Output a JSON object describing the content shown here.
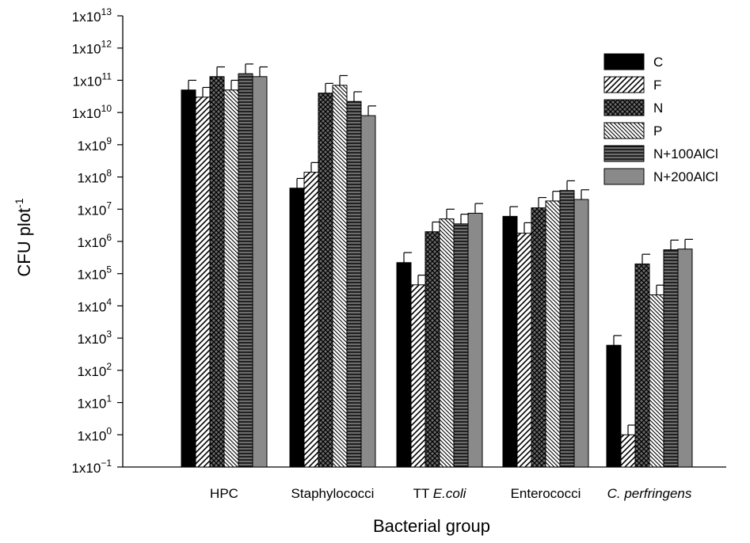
{
  "chart_data": {
    "type": "bar",
    "scale": "log",
    "title": "",
    "xlabel": "Bacterial group",
    "ylabel": "CFU plot",
    "ylabel_sup": "-1",
    "y_ticks": [
      {
        "exp": -1,
        "base": "1x10",
        "sup": "−1"
      },
      {
        "exp": 0,
        "base": "1x10",
        "sup": "0"
      },
      {
        "exp": 1,
        "base": "1x10",
        "sup": "1"
      },
      {
        "exp": 2,
        "base": "1x10",
        "sup": "2"
      },
      {
        "exp": 3,
        "base": "1x10",
        "sup": "3"
      },
      {
        "exp": 4,
        "base": "1x10",
        "sup": "4"
      },
      {
        "exp": 5,
        "base": "1x10",
        "sup": "5"
      },
      {
        "exp": 6,
        "base": "1x10",
        "sup": "6"
      },
      {
        "exp": 7,
        "base": "1x10",
        "sup": "7"
      },
      {
        "exp": 8,
        "base": "1x10",
        "sup": "8"
      },
      {
        "exp": 9,
        "base": "1x10",
        "sup": "9"
      },
      {
        "exp": 10,
        "base": "1x10",
        "sup": "10"
      },
      {
        "exp": 11,
        "base": "1x10",
        "sup": "11"
      },
      {
        "exp": 12,
        "base": "1x10",
        "sup": "12"
      },
      {
        "exp": 13,
        "base": "1x10",
        "sup": "13"
      }
    ],
    "ylim": [
      0.1,
      10000000000000.0
    ],
    "categories": [
      {
        "label": "HPC",
        "italic_part": ""
      },
      {
        "label": "Staphylococci",
        "italic_part": ""
      },
      {
        "label": "TT ",
        "italic_part": "E.coli"
      },
      {
        "label": "Enterococci",
        "italic_part": ""
      },
      {
        "label": "",
        "italic_part": "C. perfringens"
      }
    ],
    "series": [
      {
        "name": "C",
        "pattern": "solid-black",
        "values": [
          50000000000.0,
          45000000.0,
          220000.0,
          6000000.0,
          600
        ],
        "errors": [
          100000000000.0,
          90000000.0,
          450000.0,
          12000000.0,
          1200
        ]
      },
      {
        "name": "F",
        "pattern": "diag-right-sparse",
        "values": [
          30000000000.0,
          140000000.0,
          45000.0,
          1800000.0,
          1
        ],
        "errors": [
          60000000000.0,
          280000000.0,
          90000.0,
          3800000.0,
          2
        ]
      },
      {
        "name": "N",
        "pattern": "crosshatch",
        "values": [
          130000000000.0,
          40000000000.0,
          2000000.0,
          11000000.0,
          200000.0
        ],
        "errors": [
          260000000000.0,
          80000000000.0,
          4000000.0,
          23000000.0,
          400000.0
        ]
      },
      {
        "name": "P",
        "pattern": "diag-left",
        "values": [
          50000000000.0,
          70000000000.0,
          5000000.0,
          18000000.0,
          22000.0
        ],
        "errors": [
          100000000000.0,
          140000000000.0,
          10000000.0,
          36000000.0,
          44000.0
        ]
      },
      {
        "name": "N+100AlCl",
        "pattern": "horizontal",
        "values": [
          160000000000.0,
          22000000000.0,
          3500000.0,
          38000000.0,
          550000.0
        ],
        "errors": [
          320000000000.0,
          44000000000.0,
          7000000.0,
          76000000.0,
          1100000.0
        ]
      },
      {
        "name": "N+200AlCl",
        "pattern": "solid-gray",
        "values": [
          130000000000.0,
          8000000000.0,
          7500000.0,
          20000000.0,
          580000.0
        ],
        "errors": [
          260000000000.0,
          16000000000.0,
          15000000.0,
          40000000.0,
          1160000.0
        ]
      }
    ],
    "legend_placement": "top-right",
    "colors": {
      "solid_black": "#000000",
      "solid_gray": "#8a8a8a",
      "stroke": "#000000"
    }
  }
}
